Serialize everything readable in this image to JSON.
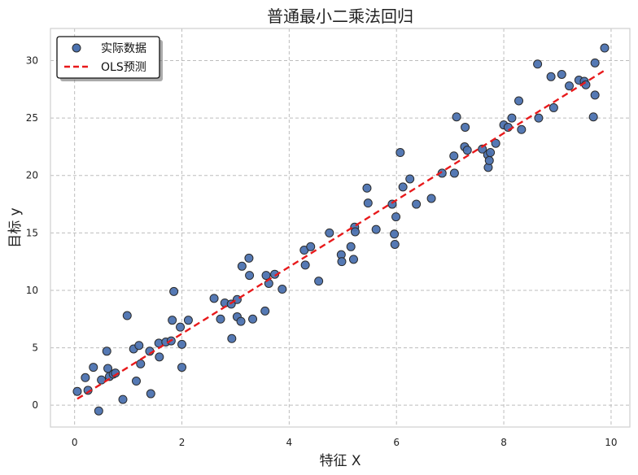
{
  "chart_data": {
    "type": "scatter",
    "title": "普通最小二乘法回归",
    "xlabel": "特征 X",
    "ylabel": "目标 y",
    "xlim": [
      -0.45,
      10.35
    ],
    "ylim": [
      -1.9,
      32.8
    ],
    "xticks": [
      0,
      2,
      4,
      6,
      8,
      10
    ],
    "yticks": [
      0,
      5,
      10,
      15,
      20,
      25,
      30
    ],
    "grid": true,
    "legend": {
      "placement": "top-left"
    },
    "series": [
      {
        "name": "实际数据",
        "kind": "scatter",
        "color": "#4c72b0",
        "points": [
          [
            0.05,
            1.2
          ],
          [
            0.2,
            2.4
          ],
          [
            0.25,
            1.3
          ],
          [
            0.35,
            3.3
          ],
          [
            0.45,
            -0.5
          ],
          [
            0.5,
            2.2
          ],
          [
            0.6,
            4.7
          ],
          [
            0.62,
            3.2
          ],
          [
            0.65,
            2.5
          ],
          [
            0.72,
            2.7
          ],
          [
            0.76,
            2.8
          ],
          [
            0.9,
            0.5
          ],
          [
            0.98,
            7.8
          ],
          [
            1.1,
            4.9
          ],
          [
            1.15,
            2.1
          ],
          [
            1.2,
            5.2
          ],
          [
            1.23,
            3.6
          ],
          [
            1.4,
            4.7
          ],
          [
            1.42,
            1.0
          ],
          [
            1.57,
            5.4
          ],
          [
            1.58,
            4.2
          ],
          [
            1.7,
            5.5
          ],
          [
            1.8,
            5.6
          ],
          [
            1.82,
            7.4
          ],
          [
            1.85,
            9.9
          ],
          [
            1.97,
            6.8
          ],
          [
            2.0,
            5.3
          ],
          [
            2.0,
            3.3
          ],
          [
            2.12,
            7.4
          ],
          [
            2.6,
            9.3
          ],
          [
            2.72,
            7.5
          ],
          [
            2.8,
            8.9
          ],
          [
            2.92,
            8.8
          ],
          [
            2.93,
            5.8
          ],
          [
            3.03,
            9.2
          ],
          [
            3.03,
            7.7
          ],
          [
            3.1,
            7.3
          ],
          [
            3.12,
            12.1
          ],
          [
            3.25,
            12.8
          ],
          [
            3.26,
            11.3
          ],
          [
            3.32,
            7.5
          ],
          [
            3.55,
            8.2
          ],
          [
            3.57,
            11.3
          ],
          [
            3.62,
            10.6
          ],
          [
            3.73,
            11.4
          ],
          [
            3.87,
            10.1
          ],
          [
            4.28,
            13.5
          ],
          [
            4.3,
            12.2
          ],
          [
            4.4,
            13.8
          ],
          [
            4.55,
            10.8
          ],
          [
            4.75,
            15.0
          ],
          [
            4.97,
            13.1
          ],
          [
            4.98,
            12.5
          ],
          [
            5.15,
            13.8
          ],
          [
            5.2,
            12.7
          ],
          [
            5.22,
            15.5
          ],
          [
            5.23,
            15.1
          ],
          [
            5.45,
            18.9
          ],
          [
            5.47,
            17.6
          ],
          [
            5.62,
            15.3
          ],
          [
            5.92,
            17.5
          ],
          [
            5.96,
            14.9
          ],
          [
            5.97,
            14.0
          ],
          [
            5.99,
            16.4
          ],
          [
            6.07,
            22.0
          ],
          [
            6.12,
            19.0
          ],
          [
            6.25,
            19.7
          ],
          [
            6.37,
            17.5
          ],
          [
            6.65,
            18.0
          ],
          [
            6.85,
            20.2
          ],
          [
            7.07,
            21.7
          ],
          [
            7.08,
            20.2
          ],
          [
            7.12,
            25.1
          ],
          [
            7.27,
            22.5
          ],
          [
            7.28,
            24.2
          ],
          [
            7.32,
            22.2
          ],
          [
            7.6,
            22.3
          ],
          [
            7.7,
            21.8
          ],
          [
            7.71,
            20.7
          ],
          [
            7.73,
            21.3
          ],
          [
            7.75,
            22.0
          ],
          [
            7.85,
            22.8
          ],
          [
            8.0,
            24.4
          ],
          [
            8.08,
            24.2
          ],
          [
            8.15,
            25.0
          ],
          [
            8.28,
            26.5
          ],
          [
            8.33,
            24.0
          ],
          [
            8.63,
            29.7
          ],
          [
            8.65,
            25.0
          ],
          [
            8.88,
            28.6
          ],
          [
            8.93,
            25.9
          ],
          [
            9.08,
            28.8
          ],
          [
            9.22,
            27.8
          ],
          [
            9.4,
            28.3
          ],
          [
            9.5,
            28.2
          ],
          [
            9.53,
            27.9
          ],
          [
            9.67,
            25.1
          ],
          [
            9.7,
            29.8
          ],
          [
            9.7,
            27.0
          ],
          [
            9.88,
            31.1
          ]
        ]
      },
      {
        "name": "OLS预测",
        "kind": "line",
        "style": "dashed",
        "color": "#e8191b",
        "points": [
          [
            0.05,
            0.55
          ],
          [
            9.88,
            29.15
          ]
        ]
      }
    ]
  }
}
